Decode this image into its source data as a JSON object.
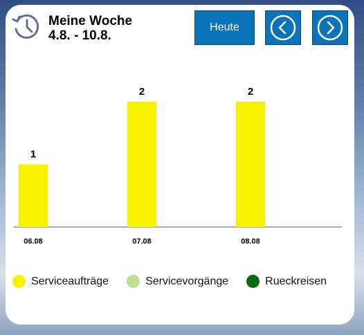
{
  "header": {
    "title": "Meine Woche",
    "date_range": "4.8. - 10.8.",
    "today_label": "Heute",
    "icons": {
      "history": "history-icon",
      "prev": "chevron-left-icon",
      "next": "chevron-right-icon"
    }
  },
  "chart_data": {
    "type": "bar",
    "categories": [
      "06.08",
      "07.08",
      "08.08"
    ],
    "series": [
      {
        "name": "Serviceaufträge",
        "values": [
          1,
          2,
          2
        ],
        "color": "#f7f300"
      }
    ],
    "data_labels": [
      "1",
      "2",
      "2"
    ],
    "ylim": [
      0,
      2
    ],
    "grid": false,
    "legend_placement": "bottom"
  },
  "legend": [
    {
      "label": "Serviceaufträge",
      "color": "#f7f300"
    },
    {
      "label": "Servicevorgänge",
      "color": "#bfdf94"
    },
    {
      "label": "Rueckreisen",
      "color": "#0a6a10"
    }
  ],
  "colors": {
    "button": "#0b74b8",
    "card": "#ffffff"
  }
}
